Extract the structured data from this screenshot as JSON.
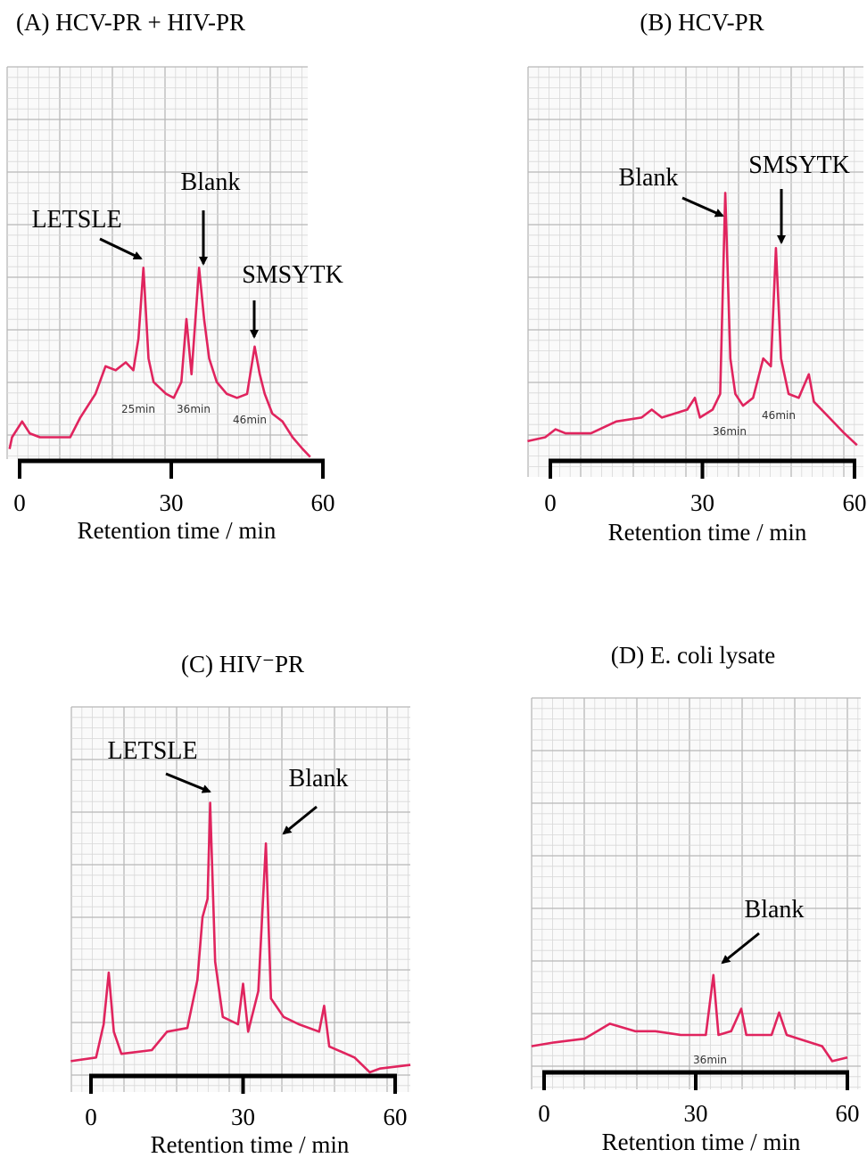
{
  "chart_data": [
    {
      "type": "line",
      "title": "(A) HCV-PR + HIV-PR",
      "xlabel": "Retention time / min",
      "xlim": [
        0,
        60
      ],
      "xticks": [
        0,
        30,
        60
      ],
      "ylim": [
        0,
        100
      ],
      "color": "#e0245e",
      "x": [
        -2,
        -1.5,
        0.5,
        2,
        4,
        10,
        12,
        15,
        17,
        19,
        21,
        22.5,
        23.5,
        24.5,
        25.5,
        26.5,
        29,
        30.5,
        32,
        33,
        34,
        35.5,
        36.5,
        37.5,
        39,
        41,
        43,
        45,
        46.5,
        47.5,
        48.5,
        50,
        52,
        54,
        56,
        57.5
      ],
      "values": [
        3,
        6,
        10,
        7,
        6,
        6,
        11,
        17,
        24,
        23,
        25,
        23,
        31,
        49,
        26,
        20,
        17,
        16,
        20,
        36,
        22,
        49,
        36,
        26,
        20,
        17,
        16,
        17,
        29,
        22,
        17,
        12,
        10,
        6,
        3,
        1
      ],
      "annotations": [
        "LETSLE",
        "Blank",
        "SMSYTK"
      ],
      "notes": [
        "25min",
        "36min",
        "46min"
      ]
    },
    {
      "type": "line",
      "title": "(B) HCV-PR",
      "xlabel": "Retention time / min",
      "xlim": [
        0,
        60
      ],
      "xticks": [
        0,
        30,
        60
      ],
      "ylim": [
        0,
        100
      ],
      "color": "#e0245e",
      "x": [
        -4.5,
        -1,
        1,
        3,
        8,
        13,
        18,
        20,
        22,
        27,
        28.5,
        29.5,
        32,
        33.5,
        34.5,
        35.5,
        36.5,
        38,
        40,
        42,
        43.5,
        44.5,
        45.5,
        47,
        49,
        51,
        52,
        55,
        58,
        60.5
      ],
      "values": [
        5,
        6,
        8,
        7,
        7,
        10,
        11,
        13,
        11,
        13,
        16,
        11,
        13,
        17,
        68,
        26,
        17,
        14,
        16,
        26,
        24,
        54,
        26,
        17,
        16,
        22,
        15,
        11,
        7,
        4
      ],
      "annotations": [
        "Blank",
        "SMSYTK"
      ],
      "notes": [
        "36min",
        "46min"
      ]
    },
    {
      "type": "line",
      "title": "(C) HIV⁻PR",
      "xlabel": "Retention time / min",
      "xlim": [
        0,
        60
      ],
      "xticks": [
        0,
        30,
        60
      ],
      "ylim": [
        0,
        100
      ],
      "color": "#e0245e",
      "x": [
        -4,
        1,
        2.5,
        3.5,
        4.5,
        6,
        12,
        15,
        19,
        21,
        22,
        23,
        23.5,
        24.5,
        26,
        29,
        30,
        31,
        33,
        34.5,
        35.5,
        38,
        41,
        45,
        46,
        47,
        52,
        55,
        57,
        63
      ],
      "values": [
        4,
        5,
        14,
        28,
        12,
        6,
        7,
        12,
        13,
        26,
        43,
        48,
        74,
        31,
        16,
        14,
        25,
        12,
        23,
        63,
        21,
        16,
        14,
        12,
        19,
        8,
        5,
        1,
        2,
        3
      ],
      "annotations": [
        "LETSLE",
        "Blank"
      ],
      "notes": []
    },
    {
      "type": "line",
      "title": "(D) E. coli lysate",
      "xlabel": "Retention time / min",
      "xlim": [
        0,
        60
      ],
      "xticks": [
        0,
        30,
        60
      ],
      "ylim": [
        0,
        100
      ],
      "color": "#e0245e",
      "x": [
        -2.5,
        2,
        8,
        13,
        18,
        22,
        27,
        32,
        33.5,
        34.5,
        37,
        39,
        40,
        45,
        46.5,
        48,
        55,
        57,
        60
      ],
      "values": [
        7,
        8,
        9,
        13,
        11,
        11,
        10,
        10,
        26,
        10,
        11,
        17,
        10,
        10,
        16,
        10,
        7,
        3,
        4
      ],
      "annotations": [
        "Blank"
      ],
      "notes": [
        "36min"
      ]
    }
  ]
}
